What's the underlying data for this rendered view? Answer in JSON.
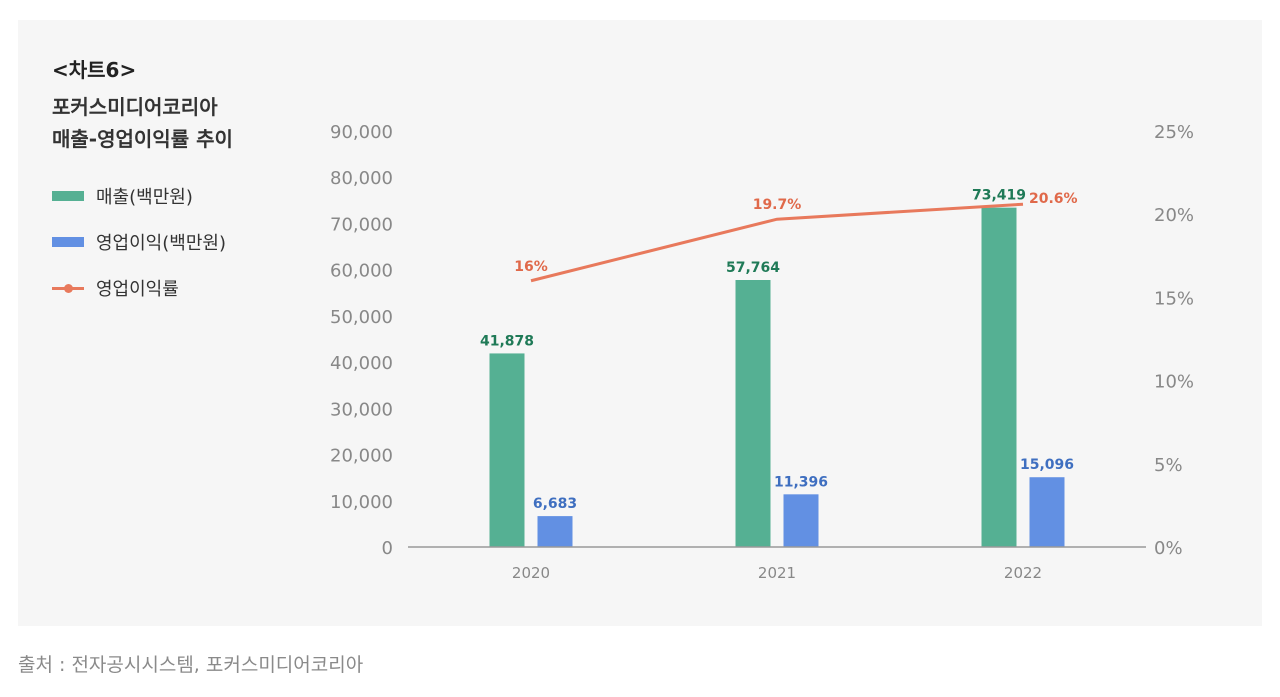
{
  "chart_label": "<차트6>",
  "title_line1": "포커스미디어코리아",
  "title_line2": "매출-영업이익률 추이",
  "source": "출처 : 전자공시시스템, 포커스미디어코리아",
  "colors": {
    "revenue": "#55b093",
    "revenue_label": "#1f7a57",
    "op_income": "#6290e3",
    "op_income_label": "#3f6fc0",
    "margin": "#e8795c",
    "margin_label": "#e0694a",
    "axis_text": "#888888",
    "axis_line": "#999999"
  },
  "chart_data": {
    "type": "bar",
    "categories": [
      "2020",
      "2021",
      "2022"
    ],
    "series": [
      {
        "name": "매출(백만원)",
        "type": "bar",
        "axis": "left",
        "values": [
          41878,
          57764,
          73419
        ],
        "labels": [
          "41,878",
          "57,764",
          "73,419"
        ]
      },
      {
        "name": "영업이익(백만원)",
        "type": "bar",
        "axis": "left",
        "values": [
          6683,
          11396,
          15096
        ],
        "labels": [
          "6,683",
          "11,396",
          "15,096"
        ]
      },
      {
        "name": "영업이익률",
        "type": "line",
        "axis": "right",
        "values": [
          16,
          19.7,
          20.6
        ],
        "labels": [
          "16%",
          "19.7%",
          "20.6%"
        ]
      }
    ],
    "y_left": {
      "range": [
        0,
        90000
      ],
      "ticks": [
        "0",
        "10,000",
        "20,000",
        "30,000",
        "40,000",
        "50,000",
        "60,000",
        "70,000",
        "80,000",
        "90,000"
      ]
    },
    "y_right": {
      "range": [
        0,
        25
      ],
      "ticks": [
        "0%",
        "5%",
        "10%",
        "15%",
        "20%",
        "25%"
      ]
    },
    "grid": false,
    "legend": "left"
  }
}
